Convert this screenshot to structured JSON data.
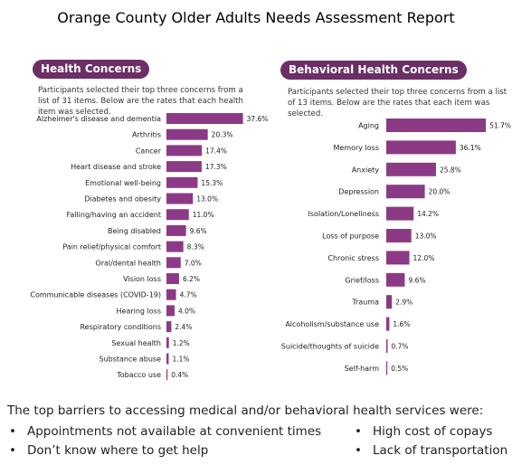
{
  "report_title": "Orange County Older Adults Needs Assessment Report",
  "panels": {
    "health": {
      "heading": "Health Concerns",
      "description": "Participants selected their top three concerns from a list of 31 items. Below are the rates that each health item was selected."
    },
    "behavioral": {
      "heading": "Behavioral Health Concerns",
      "description": "Participants selected their top three concerns from a list of 13 items. Below are the rates that each item was selected."
    }
  },
  "colors": {
    "bar": "#8c3a86",
    "pill": "#6b2f66"
  },
  "chart_data": [
    {
      "type": "bar",
      "orientation": "horizontal",
      "title": "Health Concerns",
      "unit": "%",
      "categories": [
        "Alzheimer's disease and dementia",
        "Arthritis",
        "Cancer",
        "Heart disease and stroke",
        "Emotional well-being",
        "Diabetes and obesity",
        "Falling/having an accident",
        "Being disabled",
        "Pain relief/physical comfort",
        "Oral/dental health",
        "Vision loss",
        "Communicable diseases (COVID-19)",
        "Hearing loss",
        "Respiratory conditions",
        "Sexual health",
        "Substance abuse",
        "Tobacco use"
      ],
      "values": [
        37.6,
        20.3,
        17.4,
        17.3,
        15.3,
        13.0,
        11.0,
        9.6,
        8.3,
        7.0,
        6.2,
        4.7,
        4.0,
        2.4,
        1.2,
        1.1,
        0.4
      ],
      "value_labels": [
        "37.6%",
        "20.3%",
        "17.4%",
        "17.3%",
        "15.3%",
        "13.0%",
        "11.0%",
        "9.6%",
        "8.3%",
        "7.0%",
        "6.2%",
        "4.7%",
        "4.0%",
        "2.4%",
        "1.2%",
        "1.1%",
        "0.4%"
      ]
    },
    {
      "type": "bar",
      "orientation": "horizontal",
      "title": "Behavioral Health Concerns",
      "unit": "%",
      "categories": [
        "Aging",
        "Memory loss",
        "Anxiety",
        "Depression",
        "Isolation/Loneliness",
        "Loss of purpose",
        "Chronic stress",
        "Grief/loss",
        "Trauma",
        "Alcoholism/substance use",
        "Suicide/thoughts of suicide",
        "Self-harm"
      ],
      "values": [
        51.7,
        36.1,
        25.8,
        20.0,
        14.2,
        13.0,
        12.0,
        9.6,
        2.9,
        1.6,
        0.7,
        0.5
      ],
      "value_labels": [
        "51.7%",
        "36.1%",
        "25.8%",
        "20.0%",
        "14.2%",
        "13.0%",
        "12.0%",
        "9.6%",
        "2.9%",
        "1.6%",
        "0.7%",
        "0.5%"
      ]
    }
  ],
  "barriers": {
    "heading": "The top barriers to accessing medical and/or behavioral health services were:",
    "left_items": [
      "Appointments not available at convenient times",
      "Don’t know where to get help"
    ],
    "right_items": [
      "High cost of copays",
      "Lack of transportation"
    ]
  }
}
